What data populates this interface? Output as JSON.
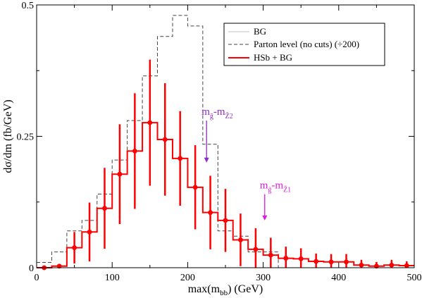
{
  "chart_data": {
    "type": "line",
    "xlabel": "max(m_bb) (GeV)",
    "ylabel": "dσ/dm (fb/GeV)",
    "xlim": [
      0,
      500
    ],
    "ylim": [
      0,
      0.5
    ],
    "x_ticks": [
      0,
      100,
      200,
      300,
      400,
      500
    ],
    "y_ticks": [
      0,
      0.25,
      0.5
    ],
    "y_tick_labels": [
      "0",
      "0.25",
      "0.5"
    ],
    "legend_position": "top-right",
    "bin_edges": [
      0,
      20,
      40,
      60,
      80,
      100,
      120,
      140,
      160,
      180,
      200,
      220,
      240,
      260,
      280,
      300,
      320,
      340,
      360,
      380,
      400,
      420,
      440,
      460,
      480,
      500
    ],
    "series": [
      {
        "name": "BG",
        "style": "solid",
        "color": "#c0c0c0",
        "values": []
      },
      {
        "name": "Parton level (no cuts) (÷200)",
        "style": "dashed",
        "color": "#444444",
        "values": [
          0.01,
          0.03,
          0.07,
          0.09,
          0.14,
          0.205,
          0.28,
          0.365,
          0.44,
          0.48,
          0.46,
          0.235,
          0.07,
          0.06,
          0.03,
          0.03,
          0,
          0,
          0,
          0,
          0,
          0,
          0,
          0,
          0
        ]
      },
      {
        "name": "HSb + BG",
        "style": "solid",
        "color": "#ff0000",
        "values": [
          0.0,
          0.003,
          0.038,
          0.068,
          0.113,
          0.178,
          0.222,
          0.276,
          0.244,
          0.208,
          0.153,
          0.105,
          0.09,
          0.053,
          0.035,
          0.024,
          0.018,
          0.017,
          0.012,
          0.011,
          0.011,
          0.005,
          0.003,
          0.005,
          0.004
        ],
        "errors": [
          0.003,
          0.004,
          0.03,
          0.056,
          0.077,
          0.095,
          0.11,
          0.12,
          0.107,
          0.09,
          0.08,
          0.07,
          0.06,
          0.05,
          0.04,
          0.033,
          0.022,
          0.02,
          0.015,
          0.015,
          0.015,
          0.01,
          0.008,
          0.01,
          0.008
        ]
      }
    ],
    "annotations": [
      {
        "text": "m_g̃-m_Z̃2",
        "arrow_x": 225,
        "arrow_y_top": 0.28,
        "arrow_y_bottom": 0.2,
        "color": "#8e2bc6"
      },
      {
        "text": "m_g̃-m_Z̃1",
        "arrow_x": 302,
        "arrow_y_top": 0.14,
        "arrow_y_bottom": 0.09,
        "color": "#e019e0"
      }
    ]
  }
}
